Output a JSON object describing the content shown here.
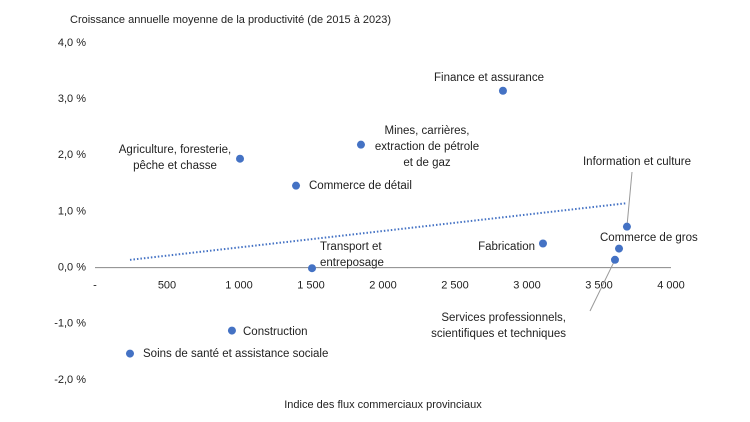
{
  "chart_data": {
    "type": "scatter",
    "title": "Croissance annuelle moyenne de la productivité (de 2015 à 2023)",
    "x_label": "Indice des flux commerciaux provinciaux",
    "labels": [
      "Finance et assurance",
      "Mines, carrières,\nextraction de pétrole\net de gaz",
      "Agriculture, foresterie,\npêche et chasse",
      "Commerce de détail",
      "Information et culture",
      "Commerce de gros",
      "Fabrication",
      "Services professionnels,\nscientifiques et techniques",
      "Transport et\nentreposage",
      "Construction",
      "Soins de santé et assistance sociale"
    ],
    "x": [
      2833,
      1847,
      1007,
      1396,
      3694,
      3639,
      3111,
      3611,
      1507,
      951,
      243
    ],
    "values": [
      3.15,
      2.19,
      1.94,
      1.46,
      0.73,
      0.34,
      0.43,
      0.14,
      -0.01,
      -1.12,
      -1.53
    ],
    "color": "#4472c4",
    "trendline": true,
    "xlim": [
      0,
      4000
    ],
    "xticks": [
      {
        "value": 0,
        "label": "-"
      },
      500,
      {
        "value": 1000,
        "label": "1 000"
      },
      {
        "value": 1500,
        "label": "1 500"
      },
      {
        "value": 2000,
        "label": "2 000"
      },
      {
        "value": 2500,
        "label": "2 500"
      },
      {
        "value": 3000,
        "label": "3 000"
      },
      {
        "value": 3500,
        "label": "3 500"
      },
      {
        "value": 4000,
        "label": "4 000"
      }
    ],
    "ylim": [
      -2,
      4
    ],
    "yticks": [
      {
        "value": -2,
        "label": "-2,0 %"
      },
      {
        "value": -1,
        "label": "-1,0 %"
      },
      {
        "value": 0,
        "label": "0,0 %"
      },
      {
        "value": 1,
        "label": "1,0 %"
      },
      {
        "value": 2,
        "label": "2,0 %"
      },
      {
        "value": 3,
        "label": "3,0 %"
      },
      {
        "value": 4,
        "label": "4,0 %"
      }
    ]
  }
}
